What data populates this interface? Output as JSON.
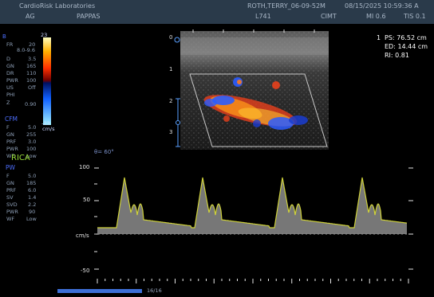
{
  "header": {
    "institution": "CardioRisk Laboratories",
    "operator": "AG",
    "physician": "PAPPAS",
    "patient_id": "ROTH,TERRY_06-09-52M",
    "transducer": "L741",
    "exam_preset": "CIMT",
    "datetime": "08/15/2025 10:59:36 A",
    "mi": "MI 0.6",
    "tis": "TIS 0.1"
  },
  "left_params": {
    "bmode": [
      {
        "label": "FR",
        "value": "20"
      },
      {
        "label": "",
        "value": "8.0-9.6"
      },
      {
        "label": "D",
        "value": "3.5"
      },
      {
        "label": "GN",
        "value": "165"
      },
      {
        "label": "DR",
        "value": "110"
      },
      {
        "label": "PWR",
        "value": "100"
      },
      {
        "label": "US",
        "value": "Off"
      },
      {
        "label": "PHI",
        "value": ""
      },
      {
        "label": "Z",
        "value": "0.90"
      }
    ],
    "cfm_title": "CFM",
    "cfm": [
      {
        "label": "F",
        "value": "5.0"
      },
      {
        "label": "GN",
        "value": "255"
      },
      {
        "label": "PRF",
        "value": "3.0"
      },
      {
        "label": "PWR",
        "value": "100"
      },
      {
        "label": "WF",
        "value": "Low"
      }
    ],
    "pw_title": "PW",
    "pw": [
      {
        "label": "F",
        "value": "5.0"
      },
      {
        "label": "GN",
        "value": "185"
      },
      {
        "label": "PRF",
        "value": "6.0"
      },
      {
        "label": "SV",
        "value": "1.4"
      },
      {
        "label": "SVD",
        "value": "2.2"
      },
      {
        "label": "PWR",
        "value": "90"
      },
      {
        "label": "WF",
        "value": "Low"
      }
    ]
  },
  "color_scale": {
    "top": "23",
    "bottom": "-23",
    "unit": "cm/s"
  },
  "vessel_label": "RICA",
  "angle_label": "θ= 60°",
  "measurements": {
    "index": "1",
    "ps": "PS: 76.52 cm",
    "ed": "ED: 14.44 cm",
    "ri": "RI: 0.81"
  },
  "depth_scale": [
    "0",
    "1",
    "2",
    "3"
  ],
  "spectrum": {
    "axis_labels": [
      "100",
      "50",
      "cm/s",
      "-50"
    ],
    "unit": "cm/s"
  },
  "playback": {
    "frame_counter": "16/16",
    "fill_fraction": 1.0
  },
  "colors": {
    "header_bg": "#2a3a4a",
    "section_blue": "#4d6fff",
    "trace_yellow": "#cfd23a",
    "flow_red": "#e8401c",
    "flow_blue": "#2b5cff"
  }
}
